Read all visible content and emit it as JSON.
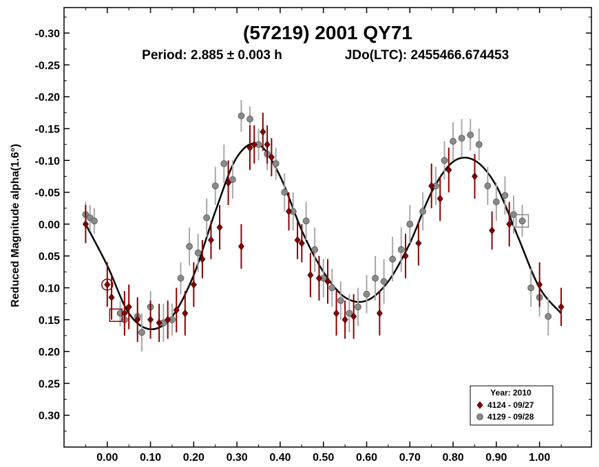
{
  "chart_data": {
    "type": "scatter",
    "title": "(57219) 2001 QY71",
    "subtitle_period": "Period: 2.885 ± 0.003 h",
    "subtitle_jd": "JDo(LTC): 2455466.674453",
    "ylabel": "Reduced Magnitude alpha(1.6°)",
    "xlabel": "",
    "xlim": [
      -0.1,
      1.12
    ],
    "ylim": [
      0.35,
      -0.34
    ],
    "y_inverted": true,
    "x_ticks": [
      "0.00",
      "0.10",
      "0.20",
      "0.30",
      "0.40",
      "0.50",
      "0.60",
      "0.70",
      "0.80",
      "0.90",
      "1.00"
    ],
    "x_tick_values": [
      0,
      0.1,
      0.2,
      0.3,
      0.4,
      0.5,
      0.6,
      0.7,
      0.8,
      0.9,
      1.0
    ],
    "y_ticks": [
      "-0.30",
      "-0.25",
      "-0.20",
      "-0.15",
      "-0.10",
      "-0.05",
      "0.00",
      "0.05",
      "0.10",
      "0.15",
      "0.20",
      "0.25",
      "0.30"
    ],
    "y_tick_values": [
      -0.3,
      -0.25,
      -0.2,
      -0.15,
      -0.1,
      -0.05,
      0,
      0.05,
      0.1,
      0.15,
      0.2,
      0.25,
      0.3
    ],
    "grid": false,
    "legend": {
      "placement": "bottom-right",
      "title": "Year: 2010",
      "entries": [
        {
          "label": "4124 - 09/27",
          "marker": "diamond",
          "color": "#8b0000"
        },
        {
          "label": "4129 - 09/28",
          "marker": "circle",
          "color": "#8a8a8a"
        }
      ]
    },
    "colors": {
      "series1": "#8b0000",
      "series2": "#8a8a8a",
      "errorbar1": "#8b0000",
      "errorbar2": "#a8a8a8",
      "fit": "#000000"
    },
    "fit_curve": {
      "x": [
        -0.05,
        0.0,
        0.05,
        0.1,
        0.15,
        0.2,
        0.25,
        0.3,
        0.35,
        0.4,
        0.45,
        0.5,
        0.55,
        0.6,
        0.65,
        0.7,
        0.75,
        0.8,
        0.85,
        0.9,
        0.95,
        1.0,
        1.05
      ],
      "y": [
        0.0,
        0.065,
        0.14,
        0.165,
        0.145,
        0.08,
        -0.02,
        -0.105,
        -0.125,
        -0.075,
        0.01,
        0.075,
        0.115,
        0.12,
        0.09,
        0.03,
        -0.05,
        -0.098,
        -0.1,
        -0.06,
        0.02,
        0.1,
        0.14
      ]
    },
    "series": [
      {
        "name": "4124 - 09/27",
        "marker": "diamond",
        "x": [
          -0.05,
          0.0,
          0.01,
          0.04,
          0.05,
          0.07,
          0.1,
          0.12,
          0.14,
          0.16,
          0.18,
          0.2,
          0.22,
          0.24,
          0.26,
          0.28,
          0.31,
          0.33,
          0.34,
          0.36,
          0.37,
          0.38,
          0.42,
          0.44,
          0.45,
          0.47,
          0.49,
          0.51,
          0.53,
          0.55,
          0.57,
          0.63,
          0.69,
          0.72,
          0.75,
          0.77,
          0.79,
          0.85,
          0.89,
          0.93,
          1.0,
          1.05
        ],
        "y": [
          0.0,
          0.095,
          0.115,
          0.14,
          0.13,
          0.15,
          0.15,
          0.155,
          0.15,
          0.135,
          0.14,
          0.095,
          0.055,
          0.025,
          0.005,
          -0.065,
          0.035,
          -0.12,
          -0.125,
          -0.145,
          -0.125,
          -0.105,
          -0.02,
          0.025,
          0.03,
          0.08,
          0.085,
          0.09,
          0.14,
          0.15,
          0.145,
          0.14,
          0.05,
          0.03,
          -0.06,
          -0.04,
          -0.085,
          -0.075,
          0.01,
          0.0,
          0.095,
          0.13
        ],
        "err": [
          0.03,
          0.035,
          0.035,
          0.035,
          0.035,
          0.035,
          0.03,
          0.03,
          0.03,
          0.035,
          0.035,
          0.035,
          0.03,
          0.03,
          0.035,
          0.035,
          0.035,
          0.035,
          0.03,
          0.03,
          0.03,
          0.03,
          0.03,
          0.03,
          0.03,
          0.035,
          0.035,
          0.035,
          0.035,
          0.03,
          0.035,
          0.035,
          0.035,
          0.035,
          0.035,
          0.035,
          0.035,
          0.035,
          0.03,
          0.035,
          0.035,
          0.03
        ]
      },
      {
        "name": "4129 - 09/28",
        "marker": "circle",
        "x": [
          -0.05,
          -0.04,
          -0.03,
          0.03,
          0.04,
          0.07,
          0.08,
          0.1,
          0.13,
          0.15,
          0.17,
          0.19,
          0.21,
          0.23,
          0.25,
          0.27,
          0.29,
          0.31,
          0.33,
          0.35,
          0.37,
          0.39,
          0.41,
          0.43,
          0.46,
          0.48,
          0.5,
          0.52,
          0.54,
          0.56,
          0.58,
          0.6,
          0.62,
          0.64,
          0.66,
          0.68,
          0.7,
          0.73,
          0.76,
          0.78,
          0.8,
          0.82,
          0.84,
          0.86,
          0.88,
          0.9,
          0.92,
          0.94,
          0.96,
          0.98,
          1.0,
          1.02
        ],
        "y": [
          -0.015,
          -0.01,
          -0.005,
          0.14,
          0.15,
          0.145,
          0.17,
          0.13,
          0.155,
          0.15,
          0.085,
          0.035,
          0.045,
          -0.01,
          -0.06,
          -0.095,
          -0.07,
          -0.17,
          -0.165,
          -0.125,
          -0.11,
          -0.095,
          -0.05,
          -0.02,
          -0.005,
          0.04,
          0.085,
          0.1,
          0.12,
          0.14,
          0.13,
          0.11,
          0.085,
          0.09,
          0.055,
          0.04,
          0.0,
          -0.02,
          -0.06,
          -0.1,
          -0.13,
          -0.135,
          -0.14,
          -0.125,
          -0.06,
          -0.035,
          -0.045,
          -0.015,
          -0.005,
          0.1,
          0.115,
          0.145
        ],
        "err": [
          0.02,
          0.02,
          0.02,
          0.02,
          0.025,
          0.03,
          0.03,
          0.025,
          0.03,
          0.025,
          0.025,
          0.03,
          0.03,
          0.03,
          0.03,
          0.03,
          0.03,
          0.025,
          0.02,
          0.025,
          0.025,
          0.025,
          0.03,
          0.03,
          0.03,
          0.035,
          0.03,
          0.03,
          0.03,
          0.03,
          0.03,
          0.03,
          0.035,
          0.035,
          0.035,
          0.035,
          0.03,
          0.03,
          0.03,
          0.03,
          0.03,
          0.03,
          0.025,
          0.025,
          0.03,
          0.03,
          0.03,
          0.03,
          0.025,
          0.03,
          0.03,
          0.03
        ]
      }
    ],
    "annotations": [
      {
        "marker": "open-circle",
        "x": 0.0,
        "y": 0.095,
        "color": "#8b0000"
      },
      {
        "marker": "open-square",
        "x": 0.02,
        "y": 0.143,
        "color": "#8b0000"
      },
      {
        "marker": "open-square",
        "x": 0.96,
        "y": -0.005,
        "color": "#8a8a8a"
      }
    ]
  }
}
